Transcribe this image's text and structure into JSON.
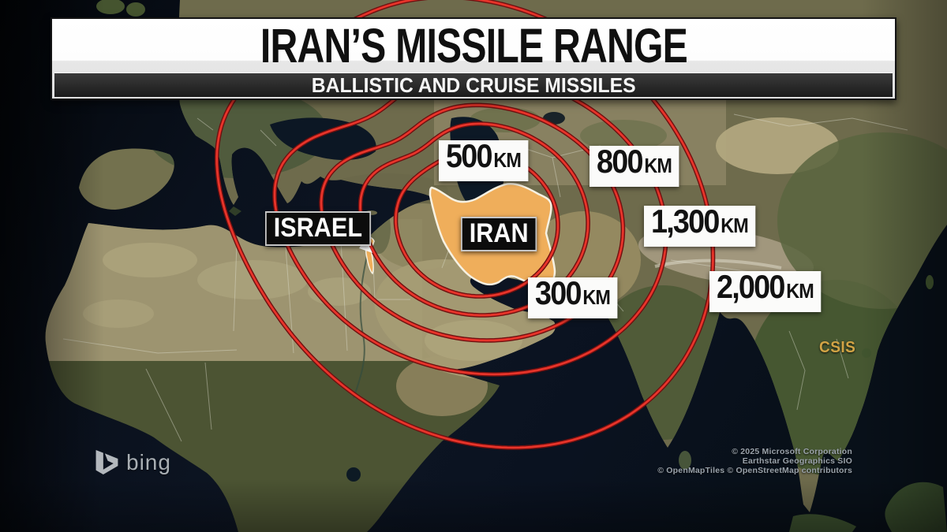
{
  "banner": {
    "title": "IRAN’S MISSILE RANGE",
    "subtitle": "BALLISTIC AND CRUISE MISSILES"
  },
  "map": {
    "countries": {
      "iran": "IRAN",
      "israel": "ISRAEL"
    },
    "range_labels": [
      {
        "value": "300",
        "unit": "KM"
      },
      {
        "value": "500",
        "unit": "KM"
      },
      {
        "value": "800",
        "unit": "KM"
      },
      {
        "value": "1,300",
        "unit": "KM"
      },
      {
        "value": "2,000",
        "unit": "KM"
      }
    ],
    "ranges_km": [
      300,
      500,
      800,
      1300,
      2000
    ],
    "source": "CSIS",
    "provider_logo": "bing",
    "attribution": [
      "© 2025 Microsoft Corporation",
      "Earthstar Geographics SIO",
      "© OpenMapTiles © OpenStreetMap contributors"
    ]
  },
  "colors": {
    "ring_red": "#e8342a",
    "ring_edge": "#6f1010",
    "iran_highlight": "#efae5b",
    "source_gold": "#d2a445"
  }
}
